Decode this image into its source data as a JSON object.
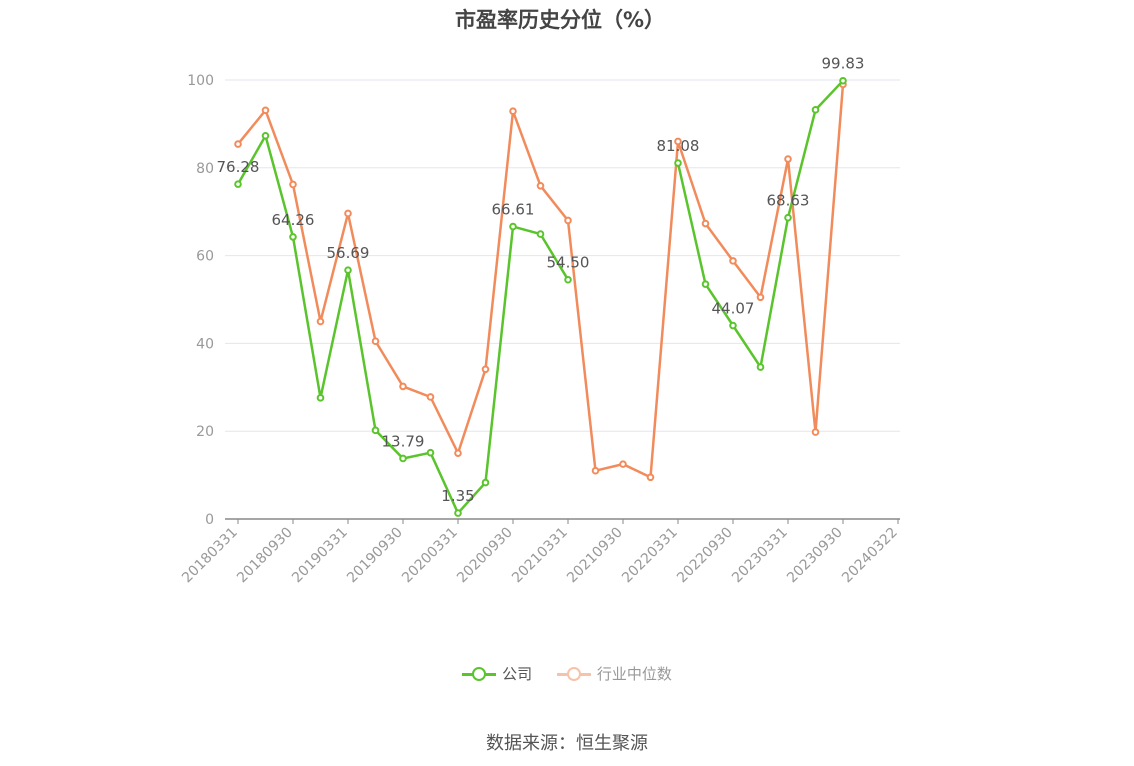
{
  "chart_data": {
    "type": "line",
    "title": "市盈率历史分位（%）",
    "x_ticks": [
      "20180331",
      "20180930",
      "20190331",
      "20190930",
      "20200331",
      "20200930",
      "20210331",
      "20210930",
      "20220331",
      "20220930",
      "20230331",
      "20230930",
      "20240322"
    ],
    "y_ticks": [
      "0",
      "20",
      "40",
      "60",
      "80",
      "100"
    ],
    "ylim": [
      0,
      100
    ],
    "grid": true,
    "legend_position": "bottom",
    "series": [
      {
        "name": "公司",
        "color": "#5ac42c",
        "values": [
          76.28,
          87.3,
          64.26,
          27.6,
          56.69,
          20.2,
          13.79,
          15.1,
          1.35,
          8.3,
          66.61,
          64.9,
          54.5,
          null,
          null,
          null,
          81.08,
          53.5,
          44.07,
          34.6,
          68.63,
          93.2,
          99.83
        ],
        "labels": [
          "76.28",
          "",
          "64.26",
          "",
          "56.69",
          "",
          "13.79",
          "",
          "1.35",
          "",
          "66.61",
          "",
          "54.50",
          "",
          "",
          "",
          "81.08",
          "",
          "44.07",
          "",
          "68.63",
          "",
          "99.83"
        ]
      },
      {
        "name": "行业中位数",
        "color": "#f28b5b",
        "values": [
          85.4,
          93.1,
          76.2,
          45.0,
          69.6,
          40.5,
          30.2,
          27.8,
          15.0,
          34.1,
          92.9,
          75.9,
          68.0,
          11.0,
          12.5,
          9.5,
          86.0,
          67.3,
          58.8,
          50.5,
          82.0,
          19.8,
          99.0
        ]
      }
    ]
  },
  "source": "数据来源：恒生聚源"
}
